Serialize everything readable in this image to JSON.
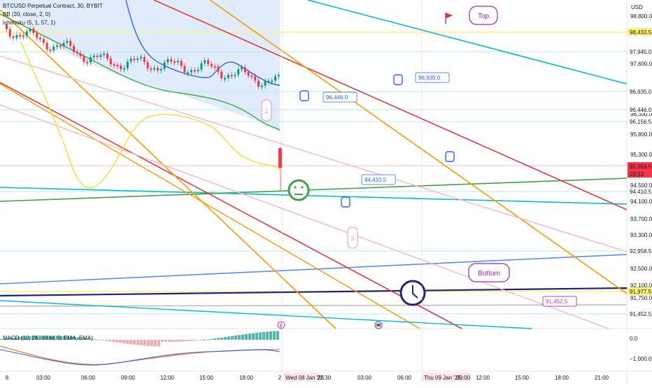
{
  "legend": {
    "title": "BTCUSD Perpetual Contract, 30, BYBIT",
    "bb": "BB (20, close, 2, 0)",
    "ichimoku": "Ichimoku (5, 1, 57, 1)"
  },
  "macd_legend": "MACD (12, 26, close, 9, EMA, EMA)",
  "currency": "USD",
  "price_axis": {
    "plain_ticks": [
      "98,800.0",
      "97,600.0",
      "96,300.0",
      "95,800.0",
      "95,300.0",
      "94,500.0",
      "94,100.0",
      "93,700.0",
      "93,300.0",
      "92,500.0",
      "92,100.0",
      "91,750.0"
    ],
    "tags": [
      {
        "text": "98,433.5",
        "bg": "#fff176",
        "fg": "#131722"
      },
      {
        "text": "97,945.0",
        "bg": "#ffffff",
        "fg": "#131722"
      },
      {
        "text": "96,935.0",
        "bg": "#ffffff",
        "fg": "#131722"
      },
      {
        "text": "96,446.0",
        "bg": "#ffffff",
        "fg": "#131722"
      },
      {
        "text": "96,156.5",
        "bg": "#ffffff",
        "fg": "#131722"
      },
      {
        "text": "95,059.5",
        "bg": "#f23645",
        "fg": "#ffffff"
      },
      {
        "text": "03:53",
        "bg": "#f23645",
        "fg": "#ffffff"
      },
      {
        "text": "94,410.5",
        "bg": "#ffffff",
        "fg": "#131722"
      },
      {
        "text": "92,958.5",
        "bg": "#ffffff",
        "fg": "#131722"
      },
      {
        "text": "91,977.5",
        "bg": "#fff176",
        "fg": "#131722"
      },
      {
        "text": "91,452.5",
        "bg": "#ffffff",
        "fg": "#131722"
      }
    ]
  },
  "macd_axis": [
    "0.0",
    "−1,000.0"
  ],
  "time_axis": [
    "8",
    "03:00",
    "06:00",
    "09:00",
    "12:00",
    "15:00",
    "18:00",
    "2",
    "03:00",
    "06:00",
    "12:00",
    "15:00",
    "18:00",
    "21:00"
  ],
  "time_highlights": [
    "Wed 08 Jan '25",
    "22:30",
    "Thu 09 Jan '25",
    "09:00"
  ],
  "annotations": {
    "callouts": [
      "96,446.0",
      "96,935.0",
      "94,410.5",
      "91,452.5"
    ],
    "bubbles": [
      "Top",
      "Bottom"
    ],
    "waves": [
      "1",
      "2"
    ]
  },
  "colors": {
    "bullish": "#089981",
    "bearish": "#f23645",
    "ichimoku_cloud": "#d6e6fb",
    "bb_basis": "#4caf50",
    "kijun": "#2962ff",
    "yellow": "#fdd835",
    "teal": "#00bcd4",
    "red": "#e53935",
    "orange": "#ff9800",
    "pink": "#f5b6c8",
    "blue": "#5b8def",
    "navy": "#1a237e",
    "green": "#43a047"
  },
  "icons": [
    "flag-icon",
    "smiley-neutral-icon",
    "clock-face-icon",
    "thumb-down-icon",
    "thumb-up-icon",
    "pointing-hand-icon",
    "lightning-icon",
    "us-flag-icon"
  ]
}
